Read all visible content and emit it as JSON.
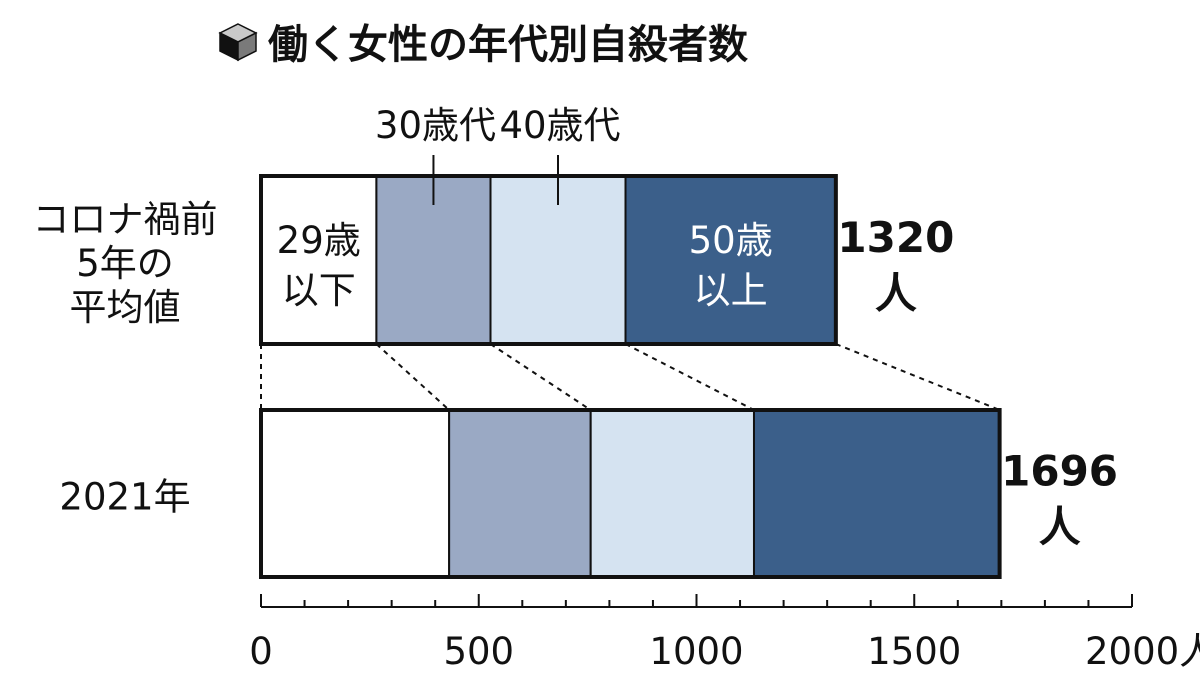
{
  "chart_data": {
    "type": "bar",
    "orientation": "horizontal",
    "stacked": true,
    "title": "働く女性の年代別自殺者数",
    "categories": [
      "コロナ禍前\n5年の\n平均値",
      "2021年"
    ],
    "series": [
      {
        "name": "29歳\n以下",
        "values": [
          265,
          432
        ],
        "color": "#ffffff"
      },
      {
        "name": "30歳代",
        "values": [
          262,
          325
        ],
        "color": "#9aa9c4"
      },
      {
        "name": "40歳代",
        "values": [
          310,
          375
        ],
        "color": "#d5e3f1"
      },
      {
        "name": "50歳\n以上",
        "values": [
          483,
          564
        ],
        "color": "#3b5f8a"
      }
    ],
    "totals": [
      1320,
      1696
    ],
    "total_unit": "人",
    "xlim": [
      0,
      2000
    ],
    "x_ticks": [
      "0",
      "500",
      "1000",
      "1500",
      "2000"
    ],
    "x_unit": "人",
    "grid": false,
    "legend": "inline"
  },
  "colors": {
    "outline": "#111111",
    "dark_segment_text": "#ffffff"
  }
}
